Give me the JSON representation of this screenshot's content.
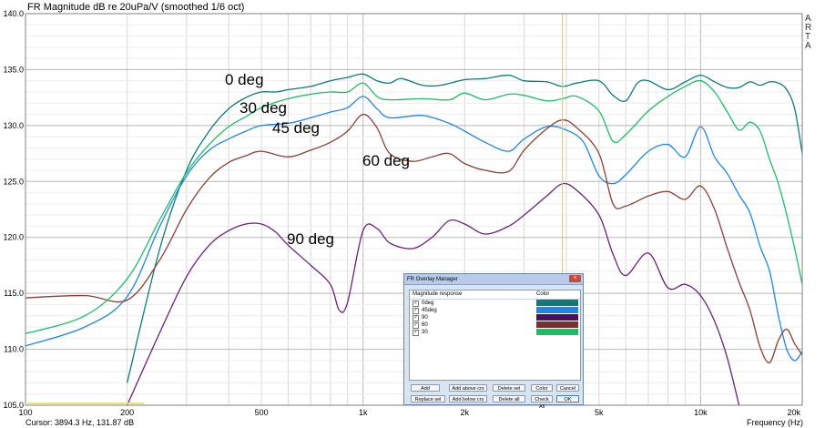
{
  "title": "FR Magnitude dB re 20uPa/V (smoothed 1/6 oct)",
  "brand": "ARTA",
  "cursor_readout": "Cursor: 3894.3 Hz, 131.87 dB",
  "x_axis_label": "Frequency (Hz)",
  "y_tick_labels": [
    "140.0",
    "135.0",
    "130.0",
    "125.0",
    "120.0",
    "115.0",
    "110.0",
    "105.0"
  ],
  "x_tick_labels": [
    "100",
    "200",
    "500",
    "1k",
    "2k",
    "5k",
    "10k",
    "20k"
  ],
  "annotations": [
    "0 deg",
    "30 deg",
    "45 deg",
    "60 deg",
    "90 deg"
  ],
  "cursor_freq_hz": 3894.3,
  "colors": {
    "cursor": "#ffd21a",
    "grid": "#d8d8d8",
    "grid_major": "#b8b8b8"
  },
  "chart_data": {
    "type": "line",
    "x_scale": "log",
    "xlim": [
      100,
      20000
    ],
    "ylim": [
      105,
      140
    ],
    "grid": true,
    "series": [
      {
        "name": "0deg",
        "color": "#0e7b76",
        "x": [
          200,
          250,
          300,
          350,
          400,
          450,
          500,
          550,
          600,
          700,
          800,
          900,
          1000,
          1100,
          1200,
          1300,
          1500,
          1700,
          2000,
          2300,
          2700,
          3000,
          3500,
          3900,
          4300,
          5000,
          5500,
          6000,
          6500,
          7000,
          8000,
          9000,
          10000,
          11000,
          12000,
          13000,
          14000,
          15000,
          16000,
          17000,
          18000,
          19000,
          20000
        ],
        "y": [
          107,
          119,
          126,
          129.5,
          131.5,
          132.5,
          133,
          133,
          133.2,
          133.5,
          134,
          134.3,
          134.6,
          134,
          133.8,
          134.2,
          133.6,
          133.6,
          134.1,
          134.2,
          134.5,
          134,
          133.9,
          133.5,
          133.8,
          134,
          132.7,
          132.2,
          133.8,
          134,
          133.2,
          133.9,
          134.5,
          133.9,
          133.4,
          133.4,
          133.9,
          133.6,
          133.9,
          133.8,
          133.2,
          131.5,
          127.5
        ]
      },
      {
        "name": "45deg",
        "color": "#1f86e6",
        "x": [
          100,
          150,
          200,
          250,
          300,
          350,
          400,
          450,
          500,
          600,
          700,
          800,
          900,
          1000,
          1100,
          1200,
          1500,
          1800,
          2000,
          2300,
          2700,
          3000,
          3500,
          4000,
          4500,
          5000,
          5500,
          6000,
          7000,
          8000,
          9000,
          10000,
          11000,
          12000,
          13000,
          14000,
          15000,
          16000,
          17000,
          18000,
          19000,
          20000
        ],
        "y": [
          110.3,
          112,
          114.7,
          121,
          125.5,
          127.8,
          128.8,
          129.5,
          130,
          130.2,
          130.7,
          131.2,
          131.6,
          132.6,
          131.5,
          130.7,
          130.9,
          130.2,
          129.5,
          128.5,
          127.7,
          128.8,
          129.9,
          129.6,
          128.5,
          125.5,
          124.8,
          125.6,
          127.7,
          128.3,
          127.2,
          129.9,
          127.2,
          125.7,
          123.8,
          122.2,
          119.2,
          117,
          113,
          110,
          109,
          109.8
        ]
      },
      {
        "name": "90",
        "color": "#6a1f7a",
        "x": [
          200,
          250,
          300,
          350,
          400,
          450,
          500,
          550,
          600,
          700,
          800,
          850,
          900,
          1000,
          1100,
          1200,
          1400,
          1600,
          1800,
          2000,
          2300,
          2700,
          3000,
          3500,
          3900,
          4300,
          5000,
          5500,
          6000,
          7000,
          8000,
          9000,
          10000,
          11000,
          12000,
          13000
        ],
        "y": [
          105,
          111.5,
          116.5,
          119.3,
          120.6,
          121.2,
          121.2,
          120.5,
          119.3,
          117.5,
          115.8,
          113.5,
          114.2,
          120.6,
          120.8,
          119.5,
          119,
          120,
          121.5,
          121.2,
          120.3,
          121,
          122,
          123.7,
          124.8,
          124.2,
          122,
          118.5,
          116.6,
          118.6,
          115.5,
          115.8,
          114.8,
          112.5,
          109.2,
          105
        ]
      },
      {
        "name": "60",
        "color": "#8b4036",
        "x": [
          100,
          150,
          200,
          250,
          300,
          350,
          400,
          450,
          500,
          600,
          700,
          800,
          900,
          1000,
          1100,
          1200,
          1400,
          1600,
          1800,
          2000,
          2300,
          2700,
          3000,
          3500,
          3900,
          4300,
          5000,
          5500,
          6000,
          7000,
          8000,
          9000,
          10000,
          11000,
          12000,
          13000,
          14000,
          15000,
          16000,
          17000,
          18000,
          19000,
          20000
        ],
        "y": [
          114.6,
          114.8,
          114.4,
          118,
          122.5,
          125.3,
          126.7,
          127.3,
          127.7,
          127.2,
          127.8,
          128.5,
          129.5,
          131,
          129.8,
          127.5,
          126.8,
          127.2,
          127.5,
          126.6,
          126,
          125.9,
          127.8,
          129.7,
          130.5,
          129.8,
          127.5,
          123,
          122.8,
          123.7,
          124.1,
          123.4,
          124.6,
          122.5,
          119,
          116,
          113.5,
          110.2,
          108.8,
          110.8,
          111.8,
          110.5,
          109.5
        ]
      },
      {
        "name": "30",
        "color": "#1dbd63",
        "x": [
          100,
          150,
          200,
          250,
          300,
          350,
          400,
          450,
          500,
          600,
          700,
          800,
          900,
          1000,
          1100,
          1200,
          1500,
          1800,
          2000,
          2300,
          2700,
          3000,
          3500,
          3900,
          4300,
          5000,
          5500,
          6000,
          7000,
          8000,
          9000,
          10000,
          11000,
          12000,
          13000,
          14000,
          15000,
          16000,
          17000,
          18000,
          19000,
          20000
        ],
        "y": [
          111.4,
          113,
          116.3,
          121.6,
          125.8,
          128.3,
          129.9,
          130.8,
          131.6,
          132.4,
          132.8,
          133,
          133,
          133.8,
          132.6,
          132.3,
          132.4,
          132.3,
          132.9,
          132.3,
          132.8,
          132.7,
          132.2,
          132.4,
          132.6,
          131.3,
          128.6,
          129.2,
          131.3,
          132.6,
          133.5,
          134,
          133,
          131.2,
          129.6,
          130.3,
          129.5,
          127,
          124.8,
          122,
          119,
          115.8
        ]
      }
    ]
  },
  "overlay_manager": {
    "title": "FR Overlay Manager",
    "close_label": "×",
    "col_response": "Magnitude response",
    "col_color": "Color",
    "rows": [
      {
        "label": "0deg",
        "check": "✓",
        "color": "#0e7b76"
      },
      {
        "label": "45deg",
        "check": "✓",
        "color": "#1f86e6"
      },
      {
        "label": "90",
        "check": "✓",
        "color": "#4a0f64"
      },
      {
        "label": "60",
        "check": "✓",
        "color": "#7a2f2f"
      },
      {
        "label": "30",
        "check": "✓",
        "color": "#1dbd63"
      }
    ],
    "buttons": {
      "add": "Add",
      "add_above": "Add above crs",
      "delete_sel": "Delete sel",
      "color": "Color",
      "cancel": "Cancel",
      "replace_sel": "Replace sel",
      "add_below": "Add below crs",
      "delete_all": "Delete all",
      "check_all": "Check All",
      "ok": "OK"
    }
  }
}
